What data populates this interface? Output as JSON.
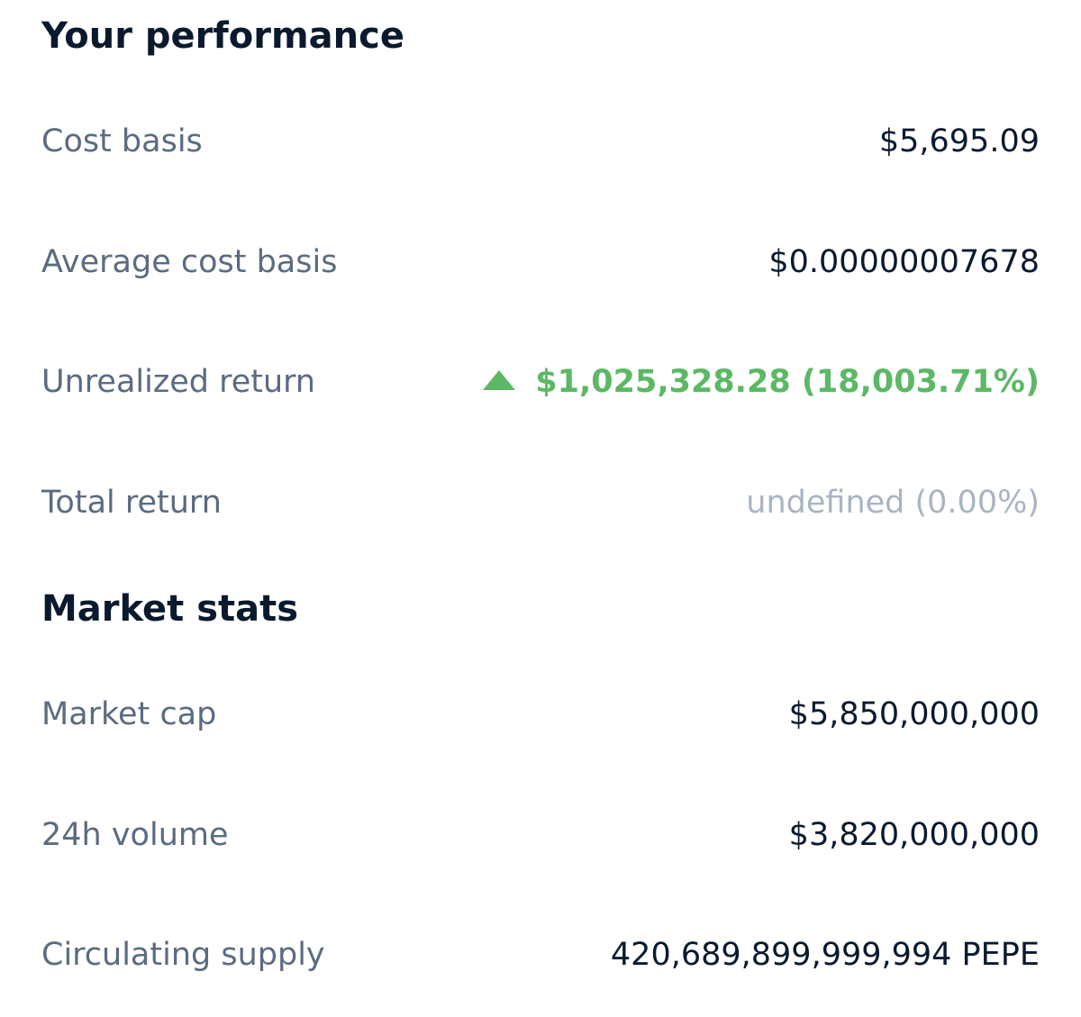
{
  "performance": {
    "title": "Your performance",
    "rows": [
      {
        "label": "Cost basis",
        "value": "$5,695.09"
      },
      {
        "label": "Average cost basis",
        "value": "$0.00000007678"
      },
      {
        "label": "Unrealized return",
        "value": "$1,025,328.28 (18,003.71%)",
        "trend": "up",
        "trend_icon": "up-triangle-icon",
        "color": "#5cb865"
      },
      {
        "label": "Total return",
        "value": "undefined (0.00%)",
        "color": "#a9b4c3"
      }
    ]
  },
  "market_stats": {
    "title": "Market stats",
    "rows": [
      {
        "label": "Market cap",
        "value": "$5,850,000,000"
      },
      {
        "label": "24h volume",
        "value": "$3,820,000,000"
      },
      {
        "label": "Circulating supply",
        "value": "420,689,899,999,994 PEPE"
      }
    ]
  },
  "colors": {
    "heading": "#0a1a2e",
    "label": "#5b6b80",
    "value": "#0a1a2e",
    "positive": "#5cb865",
    "muted": "#a9b4c3",
    "background": "#ffffff"
  }
}
